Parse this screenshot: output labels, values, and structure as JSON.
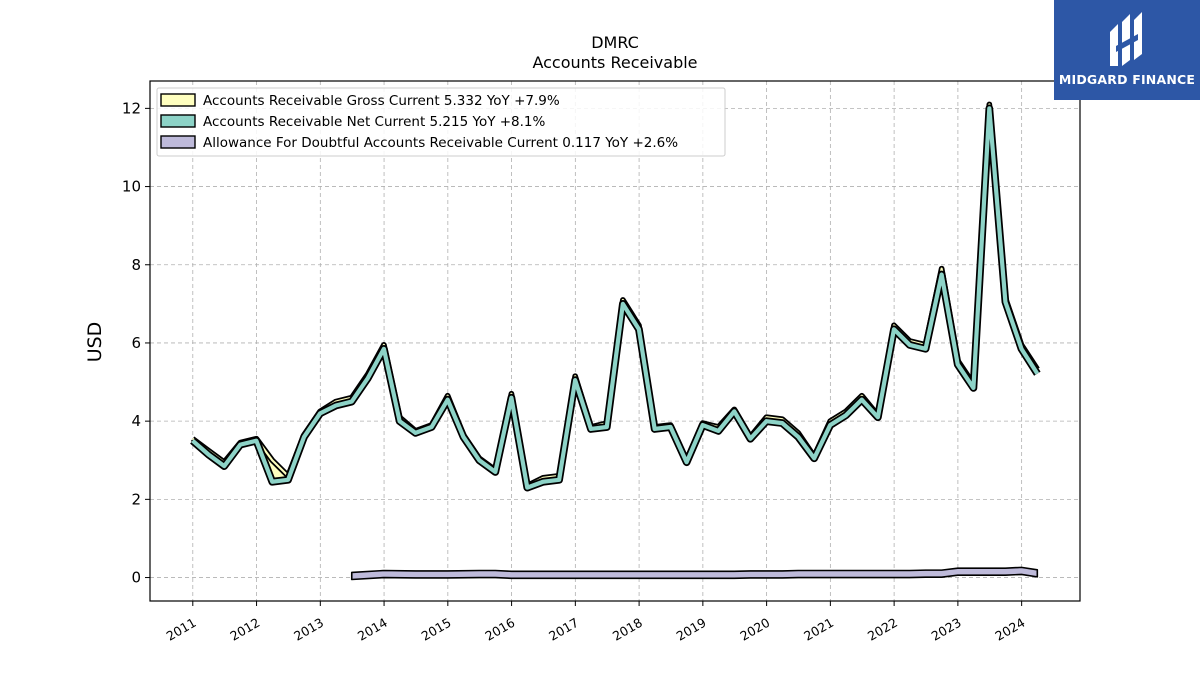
{
  "chart_data": {
    "type": "line",
    "title": "DMRC",
    "subtitle": "Accounts Receivable",
    "ylabel": "USD",
    "xlabel": "",
    "x_ticks": [
      "2011",
      "2012",
      "2013",
      "2014",
      "2015",
      "2016",
      "2017",
      "2018",
      "2019",
      "2020",
      "2021",
      "2022",
      "2023",
      "2024"
    ],
    "y_ticks": [
      "0",
      "2",
      "4",
      "6",
      "8",
      "10",
      "12"
    ],
    "xlim": [
      "2010-05-01",
      "2024-12-01"
    ],
    "ylim": [
      -0.6,
      12.7
    ],
    "grid": true,
    "legend_position": "top-left",
    "series": [
      {
        "name": "Accounts Receivable Gross Current  5.332 YoY +7.9%",
        "color": "#ffffbf",
        "points": [
          [
            "2010-12-31",
            3.55
          ],
          [
            "2011-03-31",
            3.25
          ],
          [
            "2011-06-30",
            2.95
          ],
          [
            "2011-09-30",
            3.45
          ],
          [
            "2011-12-31",
            3.55
          ],
          [
            "2012-03-31",
            3.0
          ],
          [
            "2012-06-30",
            2.6
          ],
          [
            "2012-09-30",
            3.65
          ],
          [
            "2012-12-31",
            4.25
          ],
          [
            "2013-03-31",
            4.5
          ],
          [
            "2013-06-30",
            4.6
          ],
          [
            "2013-09-30",
            5.2
          ],
          [
            "2013-12-31",
            5.95
          ],
          [
            "2014-03-31",
            4.1
          ],
          [
            "2014-06-30",
            3.75
          ],
          [
            "2014-09-30",
            3.9
          ],
          [
            "2014-12-31",
            4.65
          ],
          [
            "2015-03-31",
            3.65
          ],
          [
            "2015-06-30",
            3.05
          ],
          [
            "2015-09-30",
            2.75
          ],
          [
            "2015-12-31",
            4.7
          ],
          [
            "2016-03-31",
            2.35
          ],
          [
            "2016-06-30",
            2.55
          ],
          [
            "2016-09-30",
            2.6
          ],
          [
            "2016-12-31",
            5.15
          ],
          [
            "2017-03-31",
            3.85
          ],
          [
            "2017-06-30",
            3.95
          ],
          [
            "2017-09-30",
            7.1
          ],
          [
            "2017-12-31",
            6.45
          ],
          [
            "2018-03-31",
            3.85
          ],
          [
            "2018-06-30",
            3.9
          ],
          [
            "2018-09-30",
            3.0
          ],
          [
            "2018-12-31",
            3.95
          ],
          [
            "2019-03-31",
            3.85
          ],
          [
            "2019-06-30",
            4.3
          ],
          [
            "2019-09-30",
            3.6
          ],
          [
            "2019-12-31",
            4.1
          ],
          [
            "2020-03-31",
            4.05
          ],
          [
            "2020-06-30",
            3.7
          ],
          [
            "2020-09-30",
            3.1
          ],
          [
            "2020-12-31",
            4.0
          ],
          [
            "2021-03-31",
            4.25
          ],
          [
            "2021-06-30",
            4.65
          ],
          [
            "2021-09-30",
            4.15
          ],
          [
            "2021-12-31",
            6.45
          ],
          [
            "2022-03-31",
            6.05
          ],
          [
            "2022-06-30",
            5.95
          ],
          [
            "2022-09-30",
            7.9
          ],
          [
            "2022-12-31",
            5.55
          ],
          [
            "2023-03-31",
            4.95
          ],
          [
            "2023-06-30",
            12.1
          ],
          [
            "2023-09-30",
            7.15
          ],
          [
            "2023-12-31",
            5.95
          ],
          [
            "2024-03-31",
            5.33
          ]
        ]
      },
      {
        "name": "Accounts Receivable Net Current  5.215 YoY +8.1%",
        "color": "#8dd3c7",
        "points": [
          [
            "2010-12-31",
            3.5
          ],
          [
            "2011-03-31",
            3.15
          ],
          [
            "2011-06-30",
            2.85
          ],
          [
            "2011-09-30",
            3.4
          ],
          [
            "2011-12-31",
            3.5
          ],
          [
            "2012-03-31",
            2.45
          ],
          [
            "2012-06-30",
            2.5
          ],
          [
            "2012-09-30",
            3.6
          ],
          [
            "2012-12-31",
            4.2
          ],
          [
            "2013-03-31",
            4.4
          ],
          [
            "2013-06-30",
            4.5
          ],
          [
            "2013-09-30",
            5.1
          ],
          [
            "2013-12-31",
            5.85
          ],
          [
            "2014-03-31",
            4.0
          ],
          [
            "2014-06-30",
            3.7
          ],
          [
            "2014-09-30",
            3.85
          ],
          [
            "2014-12-31",
            4.55
          ],
          [
            "2015-03-31",
            3.6
          ],
          [
            "2015-06-30",
            3.0
          ],
          [
            "2015-09-30",
            2.7
          ],
          [
            "2015-12-31",
            4.6
          ],
          [
            "2016-03-31",
            2.3
          ],
          [
            "2016-06-30",
            2.45
          ],
          [
            "2016-09-30",
            2.5
          ],
          [
            "2016-12-31",
            5.05
          ],
          [
            "2017-03-31",
            3.8
          ],
          [
            "2017-06-30",
            3.85
          ],
          [
            "2017-09-30",
            7.0
          ],
          [
            "2017-12-31",
            6.35
          ],
          [
            "2018-03-31",
            3.8
          ],
          [
            "2018-06-30",
            3.85
          ],
          [
            "2018-09-30",
            2.95
          ],
          [
            "2018-12-31",
            3.9
          ],
          [
            "2019-03-31",
            3.75
          ],
          [
            "2019-06-30",
            4.25
          ],
          [
            "2019-09-30",
            3.55
          ],
          [
            "2019-12-31",
            4.0
          ],
          [
            "2020-03-31",
            3.95
          ],
          [
            "2020-06-30",
            3.6
          ],
          [
            "2020-09-30",
            3.05
          ],
          [
            "2020-12-31",
            3.9
          ],
          [
            "2021-03-31",
            4.15
          ],
          [
            "2021-06-30",
            4.55
          ],
          [
            "2021-09-30",
            4.1
          ],
          [
            "2021-12-31",
            6.35
          ],
          [
            "2022-03-31",
            5.95
          ],
          [
            "2022-06-30",
            5.85
          ],
          [
            "2022-09-30",
            7.75
          ],
          [
            "2022-12-31",
            5.45
          ],
          [
            "2023-03-31",
            4.85
          ],
          [
            "2023-06-30",
            12.0
          ],
          [
            "2023-09-30",
            7.05
          ],
          [
            "2023-12-31",
            5.85
          ],
          [
            "2024-03-31",
            5.215
          ]
        ]
      },
      {
        "name": "Allowance For Doubtful Accounts Receivable Current  0.117 YoY +2.6%",
        "color": "#bebada",
        "points": [
          [
            "2013-06-30",
            0.05
          ],
          [
            "2013-12-31",
            0.1
          ],
          [
            "2014-06-30",
            0.09
          ],
          [
            "2014-12-31",
            0.09
          ],
          [
            "2015-06-30",
            0.1
          ],
          [
            "2015-09-30",
            0.1
          ],
          [
            "2015-12-31",
            0.08
          ],
          [
            "2016-06-30",
            0.08
          ],
          [
            "2017-06-30",
            0.08
          ],
          [
            "2018-06-30",
            0.08
          ],
          [
            "2019-06-30",
            0.08
          ],
          [
            "2019-09-30",
            0.09
          ],
          [
            "2020-03-31",
            0.09
          ],
          [
            "2020-06-30",
            0.1
          ],
          [
            "2021-06-30",
            0.1
          ],
          [
            "2022-03-31",
            0.1
          ],
          [
            "2022-06-30",
            0.11
          ],
          [
            "2022-09-30",
            0.11
          ],
          [
            "2022-12-31",
            0.16
          ],
          [
            "2023-06-30",
            0.16
          ],
          [
            "2023-09-30",
            0.16
          ],
          [
            "2023-12-31",
            0.18
          ],
          [
            "2024-03-31",
            0.117
          ]
        ]
      }
    ]
  },
  "branding": {
    "logo_text": "MIDGARD FINANCE",
    "logo_bg": "#2d57a6"
  }
}
